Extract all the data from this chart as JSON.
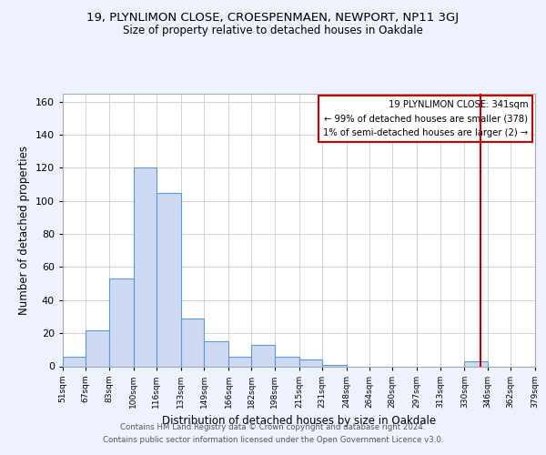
{
  "title": "19, PLYNLIMON CLOSE, CROESPENMAEN, NEWPORT, NP11 3GJ",
  "subtitle": "Size of property relative to detached houses in Oakdale",
  "xlabel": "Distribution of detached houses by size in Oakdale",
  "ylabel": "Number of detached properties",
  "bin_edges": [
    51,
    67,
    83,
    100,
    116,
    133,
    149,
    166,
    182,
    198,
    215,
    231,
    248,
    264,
    280,
    297,
    313,
    330,
    346,
    362,
    379
  ],
  "bar_heights": [
    6,
    22,
    53,
    120,
    105,
    29,
    15,
    6,
    13,
    6,
    4,
    1,
    0,
    0,
    0,
    0,
    0,
    3,
    0,
    0
  ],
  "bar_color": "#ccd9f0",
  "bar_edgecolor": "#5b9bd5",
  "vline_x": 341,
  "vline_color": "#cc0000",
  "legend_title": "19 PLYNLIMON CLOSE: 341sqm",
  "legend_line1": "← 99% of detached houses are smaller (378)",
  "legend_line2": "1% of semi-detached houses are larger (2) →",
  "legend_box_edgecolor": "#cc0000",
  "footnote_line1": "Contains HM Land Registry data © Crown copyright and database right 2024.",
  "footnote_line2": "Contains public sector information licensed under the Open Government Licence v3.0.",
  "ylim": [
    0,
    165
  ],
  "background_color": "#eef2fc",
  "plot_bg_color": "#ffffff",
  "grid_color": "#cccccc"
}
